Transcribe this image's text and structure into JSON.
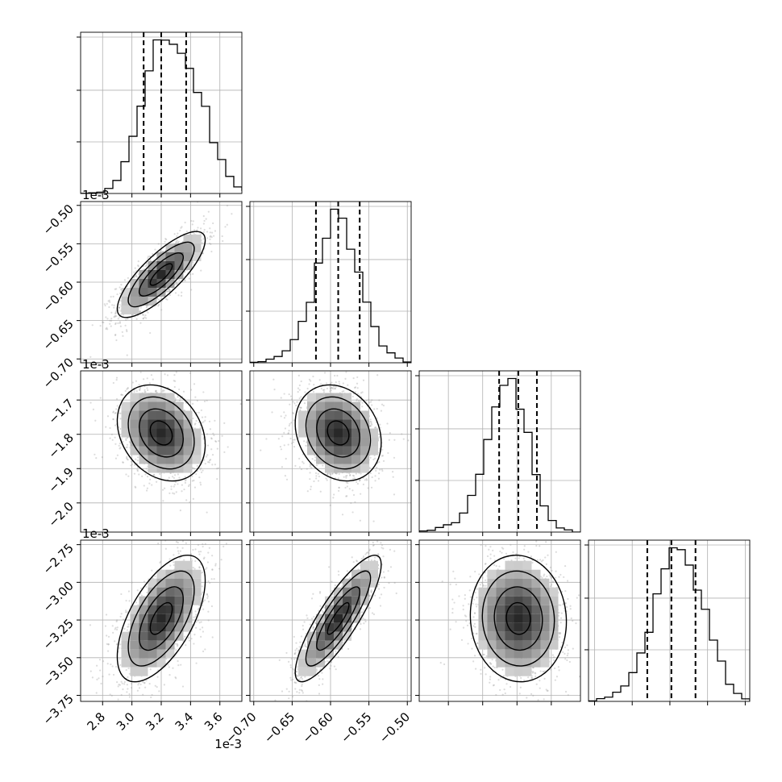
{
  "chart_data": {
    "type": "corner",
    "title": "",
    "grid": true,
    "offset_text": "1e-3",
    "parameters": [
      {
        "range": [
          2.65,
          3.75
        ],
        "ticks": [
          2.8,
          3.0,
          3.2,
          3.4,
          3.6
        ],
        "tick_labels": [
          "2.8",
          "3.0",
          "3.2",
          "3.4",
          "3.6"
        ]
      },
      {
        "range": [
          -0.705,
          -0.495
        ],
        "ticks": [
          -0.7,
          -0.65,
          -0.6,
          -0.55,
          -0.5
        ],
        "tick_labels": [
          "−0.70",
          "−0.65",
          "−0.60",
          "−0.55",
          "−0.50"
        ]
      },
      {
        "range": [
          -2.085,
          -1.615
        ],
        "ticks": [
          -2.0,
          -1.9,
          -1.8,
          -1.7
        ],
        "tick_labels": [
          "−2.0",
          "−1.9",
          "−1.8",
          "−1.7"
        ]
      },
      {
        "range": [
          -3.79,
          -2.72
        ],
        "ticks": [
          -3.75,
          -3.5,
          -3.25,
          -3.0,
          -2.75
        ],
        "tick_labels": [
          "−3.75",
          "−3.50",
          "−3.25",
          "−3.00",
          "−2.75"
        ]
      }
    ],
    "quantiles": [
      [
        3.08,
        3.2,
        3.37
      ],
      [
        -0.619,
        -0.59,
        -0.562
      ],
      [
        -1.852,
        -1.796,
        -1.742
      ],
      [
        -3.4,
        -3.24,
        -3.08
      ]
    ],
    "histograms": [
      {
        "edges_start": 2.65,
        "bin_width": 0.055,
        "counts": [
          1,
          4,
          8,
          30,
          78,
          190,
          342,
          522,
          733,
          918,
          917,
          892,
          838,
          748,
          604,
          521,
          304,
          203,
          102,
          39,
          18,
          8
        ]
      },
      {
        "edges_start": -0.705,
        "bin_width": 0.0105,
        "counts": [
          3,
          7,
          23,
          40,
          76,
          147,
          263,
          384,
          633,
          791,
          975,
          918,
          721,
          576,
          385,
          230,
          107,
          63,
          30,
          5
        ]
      },
      {
        "edges_start": -2.085,
        "bin_width": 0.0235,
        "counts": [
          7,
          11,
          29,
          46,
          59,
          120,
          231,
          364,
          583,
          788,
          924,
          967,
          774,
          628,
          362,
          165,
          73,
          26,
          14,
          0
        ]
      },
      {
        "edges_start": -3.79,
        "bin_width": 0.0535,
        "counts": [
          3,
          16,
          25,
          54,
          91,
          170,
          286,
          408,
          635,
          783,
          907,
          896,
          805,
          657,
          544,
          362,
          238,
          101,
          47,
          15
        ]
      }
    ],
    "correlations": {
      "1-0": 0.8,
      "2-0": -0.25,
      "2-1": -0.2,
      "3-0": 0.6,
      "3-1": 0.85,
      "3-2": -0.05
    },
    "std": [
      0.15,
      0.028,
      0.07,
      0.21
    ]
  }
}
